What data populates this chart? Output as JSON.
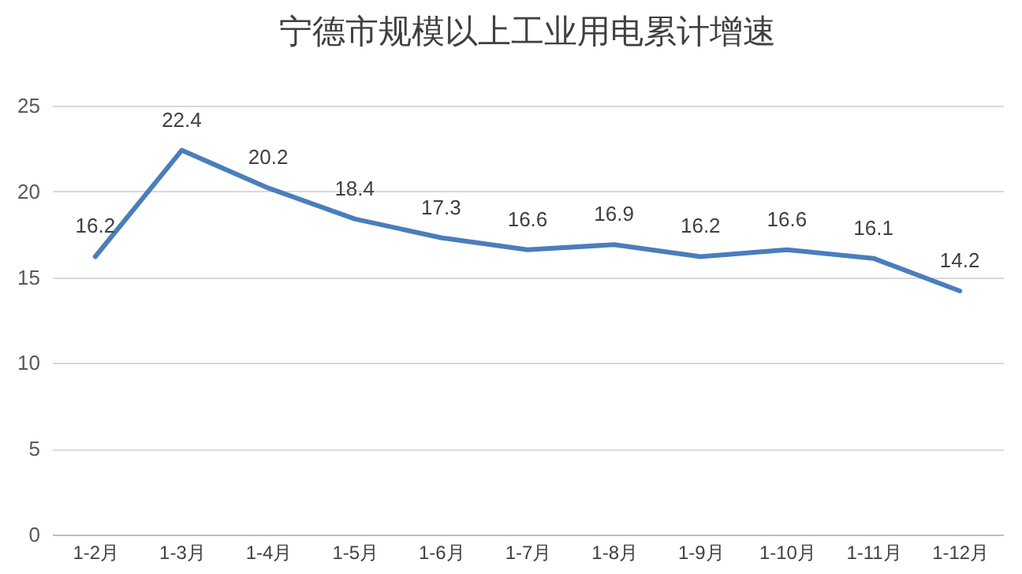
{
  "chart_data": {
    "type": "line",
    "title": "宁德市规模以上工业用电累计增速",
    "categories": [
      "1-2月",
      "1-3月",
      "1-4月",
      "1-5月",
      "1-6月",
      "1-7月",
      "1-8月",
      "1-9月",
      "1-10月",
      "1-11月",
      "1-12月"
    ],
    "series": [
      {
        "color": "#4a7ebb",
        "values": [
          16.2,
          22.4,
          20.2,
          18.4,
          17.3,
          16.6,
          16.9,
          16.2,
          16.6,
          16.1,
          14.2
        ]
      }
    ],
    "ylim": [
      0,
      25
    ],
    "yticks": [
      0,
      5,
      10,
      15,
      20,
      25
    ],
    "grid": "y",
    "data_labels": true,
    "marker": "none",
    "line_style": "solid"
  }
}
